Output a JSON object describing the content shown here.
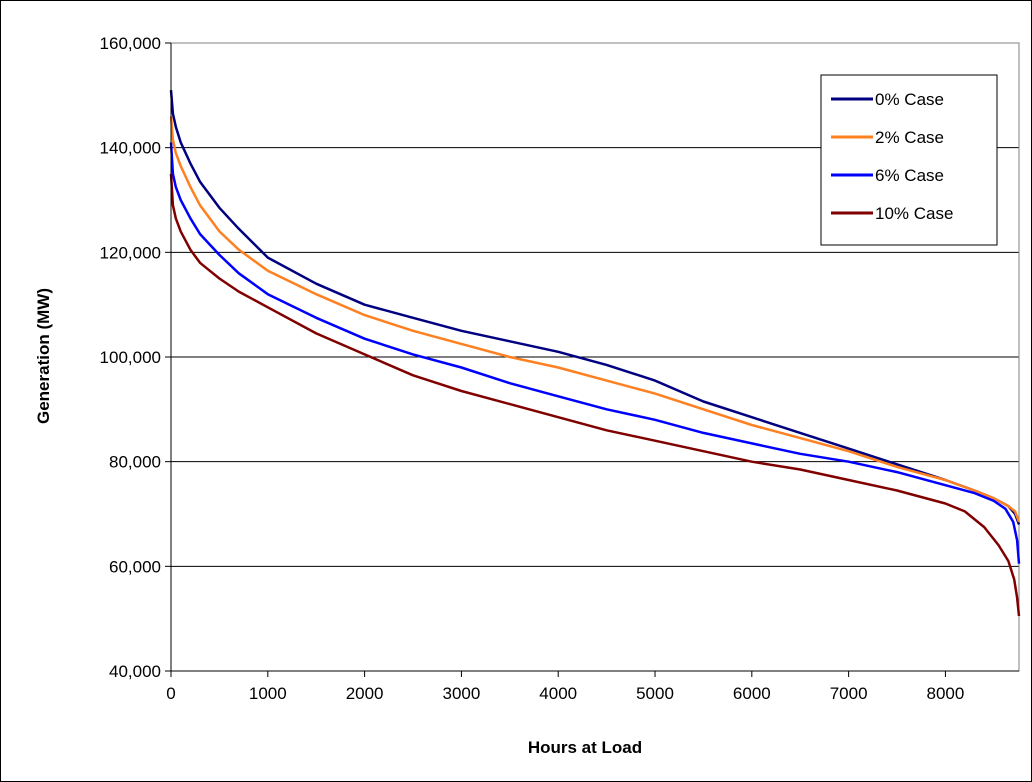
{
  "chart_data": {
    "type": "line",
    "title": "",
    "xlabel": "Hours at Load",
    "ylabel": "Generation (MW)",
    "xlim": [
      0,
      8760
    ],
    "ylim": [
      40000,
      160000
    ],
    "x_ticks": [
      0,
      1000,
      2000,
      3000,
      4000,
      5000,
      6000,
      7000,
      8000
    ],
    "x_tick_labels": [
      "0",
      "1000",
      "2000",
      "3000",
      "4000",
      "5000",
      "6000",
      "7000",
      "8000"
    ],
    "y_ticks": [
      40000,
      60000,
      80000,
      100000,
      120000,
      140000,
      160000
    ],
    "y_tick_labels": [
      "40,000",
      "60,000",
      "80,000",
      "100,000",
      "120,000",
      "140,000",
      "160,000"
    ],
    "grid": "horizontal",
    "legend_position": "top-right",
    "series": [
      {
        "name": "0% Case",
        "color": "#000080",
        "points": [
          [
            0,
            151000
          ],
          [
            20,
            146500
          ],
          [
            50,
            144000
          ],
          [
            100,
            141000
          ],
          [
            200,
            137000
          ],
          [
            300,
            133500
          ],
          [
            400,
            131000
          ],
          [
            500,
            128500
          ],
          [
            700,
            124500
          ],
          [
            1000,
            119000
          ],
          [
            1500,
            114000
          ],
          [
            2000,
            110000
          ],
          [
            2500,
            107500
          ],
          [
            3000,
            105000
          ],
          [
            3500,
            103000
          ],
          [
            4000,
            101000
          ],
          [
            4500,
            98500
          ],
          [
            5000,
            95500
          ],
          [
            5500,
            91500
          ],
          [
            6000,
            88500
          ],
          [
            6500,
            85500
          ],
          [
            7000,
            82500
          ],
          [
            7500,
            79500
          ],
          [
            8000,
            76500
          ],
          [
            8300,
            74500
          ],
          [
            8500,
            73000
          ],
          [
            8650,
            71500
          ],
          [
            8720,
            70000
          ],
          [
            8760,
            68000
          ]
        ]
      },
      {
        "name": "2% Case",
        "color": "#FF8020",
        "points": [
          [
            0,
            146000
          ],
          [
            20,
            141500
          ],
          [
            50,
            139000
          ],
          [
            100,
            136500
          ],
          [
            200,
            132500
          ],
          [
            300,
            129000
          ],
          [
            400,
            126500
          ],
          [
            500,
            124000
          ],
          [
            700,
            120500
          ],
          [
            1000,
            116500
          ],
          [
            1500,
            112000
          ],
          [
            2000,
            108000
          ],
          [
            2500,
            105000
          ],
          [
            3000,
            102500
          ],
          [
            3500,
            100000
          ],
          [
            4000,
            98000
          ],
          [
            4500,
            95500
          ],
          [
            5000,
            93000
          ],
          [
            5500,
            90000
          ],
          [
            6000,
            87000
          ],
          [
            6500,
            84500
          ],
          [
            7000,
            82000
          ],
          [
            7500,
            79000
          ],
          [
            8000,
            76500
          ],
          [
            8300,
            74500
          ],
          [
            8500,
            73000
          ],
          [
            8650,
            71500
          ],
          [
            8720,
            70500
          ],
          [
            8760,
            68500
          ]
        ]
      },
      {
        "name": "6% Case",
        "color": "#0000FF",
        "points": [
          [
            0,
            141000
          ],
          [
            20,
            135000
          ],
          [
            50,
            132500
          ],
          [
            100,
            130000
          ],
          [
            200,
            126500
          ],
          [
            300,
            123500
          ],
          [
            400,
            121500
          ],
          [
            500,
            119500
          ],
          [
            700,
            116000
          ],
          [
            1000,
            112000
          ],
          [
            1500,
            107500
          ],
          [
            2000,
            103500
          ],
          [
            2500,
            100500
          ],
          [
            3000,
            98000
          ],
          [
            3500,
            95000
          ],
          [
            4000,
            92500
          ],
          [
            4500,
            90000
          ],
          [
            5000,
            88000
          ],
          [
            5500,
            85500
          ],
          [
            6000,
            83500
          ],
          [
            6500,
            81500
          ],
          [
            7000,
            80000
          ],
          [
            7500,
            78000
          ],
          [
            8000,
            75500
          ],
          [
            8300,
            74000
          ],
          [
            8500,
            72500
          ],
          [
            8620,
            71000
          ],
          [
            8700,
            68500
          ],
          [
            8740,
            65000
          ],
          [
            8760,
            60500
          ]
        ]
      },
      {
        "name": "10% Case",
        "color": "#800000",
        "points": [
          [
            0,
            135000
          ],
          [
            20,
            129000
          ],
          [
            50,
            126500
          ],
          [
            100,
            124000
          ],
          [
            200,
            120500
          ],
          [
            300,
            118000
          ],
          [
            400,
            116500
          ],
          [
            500,
            115000
          ],
          [
            700,
            112500
          ],
          [
            1000,
            109500
          ],
          [
            1500,
            104500
          ],
          [
            2000,
            100500
          ],
          [
            2500,
            96500
          ],
          [
            3000,
            93500
          ],
          [
            3500,
            91000
          ],
          [
            4000,
            88500
          ],
          [
            4500,
            86000
          ],
          [
            5000,
            84000
          ],
          [
            5500,
            82000
          ],
          [
            6000,
            80000
          ],
          [
            6500,
            78500
          ],
          [
            7000,
            76500
          ],
          [
            7500,
            74500
          ],
          [
            8000,
            72000
          ],
          [
            8200,
            70500
          ],
          [
            8400,
            67500
          ],
          [
            8550,
            64000
          ],
          [
            8650,
            61000
          ],
          [
            8710,
            57500
          ],
          [
            8740,
            54000
          ],
          [
            8760,
            50500
          ]
        ]
      }
    ]
  }
}
